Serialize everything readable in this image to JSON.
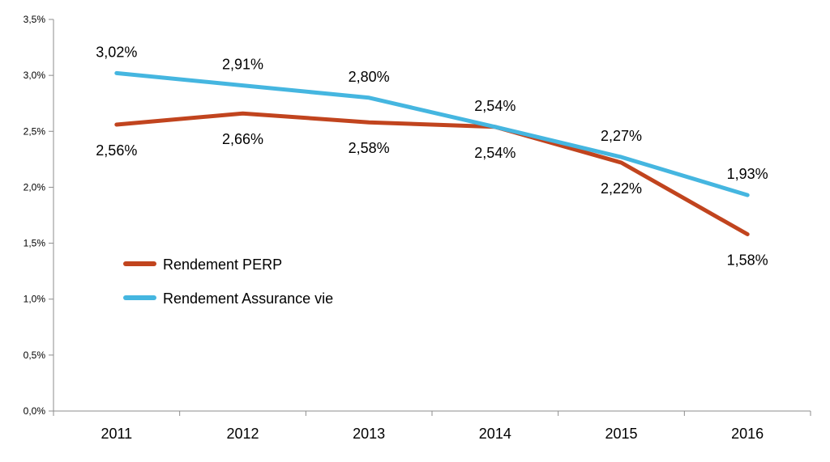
{
  "chart_data": {
    "type": "line",
    "categories": [
      "2011",
      "2012",
      "2013",
      "2014",
      "2015",
      "2016"
    ],
    "series": [
      {
        "name": "Rendement PERP",
        "values": [
          2.56,
          2.66,
          2.58,
          2.54,
          2.22,
          1.58
        ],
        "labels": [
          "2,56%",
          "2,66%",
          "2,58%",
          "2,54%",
          "2,22%",
          "1,58%"
        ],
        "color": "#c1441e"
      },
      {
        "name": "Rendement Assurance vie",
        "values": [
          3.02,
          2.91,
          2.8,
          2.54,
          2.27,
          1.93
        ],
        "labels": [
          "3,02%",
          "2,91%",
          "2,80%",
          "2,54%",
          "2,27%",
          "1,93%"
        ],
        "color": "#45b6e0"
      }
    ],
    "ylim": [
      0,
      3.5
    ],
    "yticks": [
      0,
      0.5,
      1.0,
      1.5,
      2.0,
      2.5,
      3.0,
      3.5
    ],
    "ytick_labels": [
      "0,0%",
      "0,5%",
      "1,0%",
      "1,5%",
      "2,0%",
      "2,5%",
      "3,0%",
      "3,5%"
    ],
    "grid": false,
    "legend": "left-middle",
    "title": "",
    "xlabel": "",
    "ylabel": ""
  }
}
